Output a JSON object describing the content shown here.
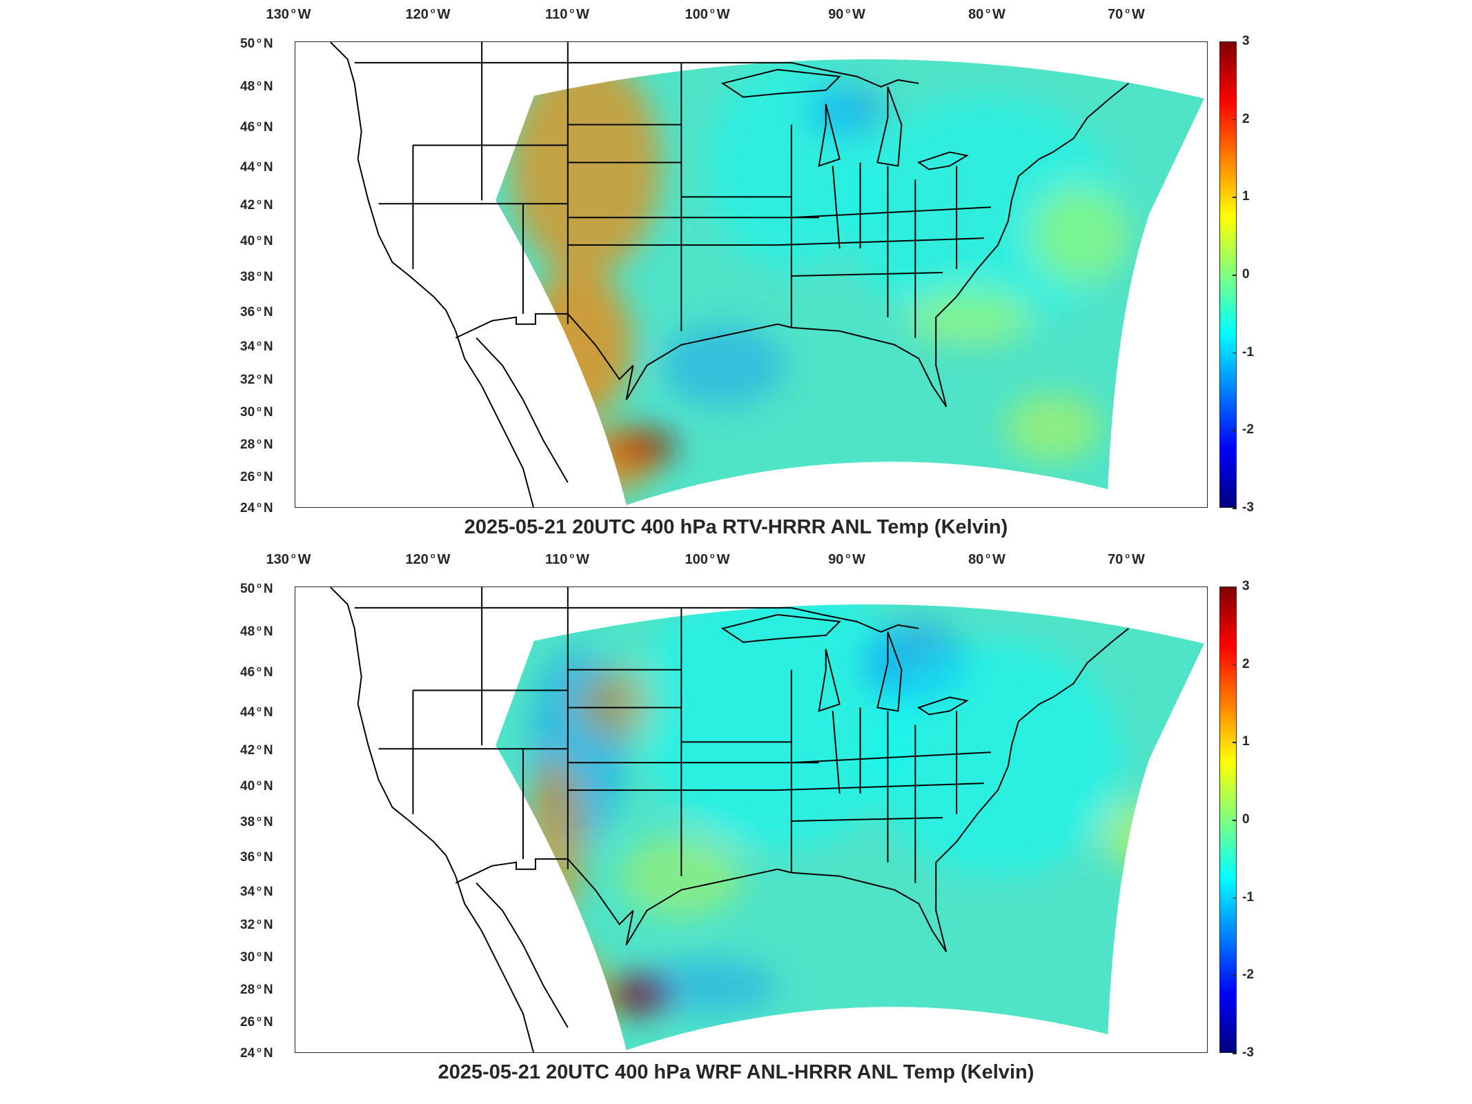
{
  "panels": [
    {
      "title": "2025-05-21 20UTC 400 hPa RTV-HRRR ANL Temp (Kelvin)",
      "colorbar": {
        "min": -3,
        "max": 3,
        "ticks": [
          "3",
          "2",
          "1",
          "0",
          "-1",
          "-2",
          "-3"
        ]
      },
      "warm_anomaly_regions": [
        "Wyoming",
        "Colorado",
        "New Mexico",
        "Arizona border",
        "south Texas",
        "Gulf coast of Texas"
      ],
      "cool_anomaly_regions": [
        "Oklahoma",
        "north Texas",
        "Lake Superior",
        "Ohio"
      ]
    },
    {
      "title": "2025-05-21 20UTC 400 hPa WRF ANL-HRRR ANL Temp (Kelvin)",
      "colorbar": {
        "min": -3,
        "max": 3,
        "ticks": [
          "3",
          "2",
          "1",
          "0",
          "-1",
          "-2",
          "-3"
        ]
      },
      "warm_anomaly_regions": [
        "New Mexico",
        "west Texas",
        "south Texas",
        "Gulf coast of Texas",
        "South Dakota"
      ],
      "cool_anomaly_regions": [
        "Colorado",
        "Lake Superior",
        "Great Lakes",
        "Gulf of Mexico"
      ]
    }
  ],
  "axes": {
    "longitudes": [
      "130",
      "120",
      "110",
      "100",
      "90",
      "80",
      "70"
    ],
    "latitudes": [
      "50",
      "48",
      "46",
      "44",
      "42",
      "40",
      "38",
      "36",
      "34",
      "32",
      "30",
      "28",
      "26",
      "24"
    ],
    "lon_suffix": "W",
    "lat_suffix": "N"
  },
  "colormap": "jet",
  "colors": {
    "frame": "#262626",
    "background": "#ffffff",
    "land_outline": "#000000"
  }
}
